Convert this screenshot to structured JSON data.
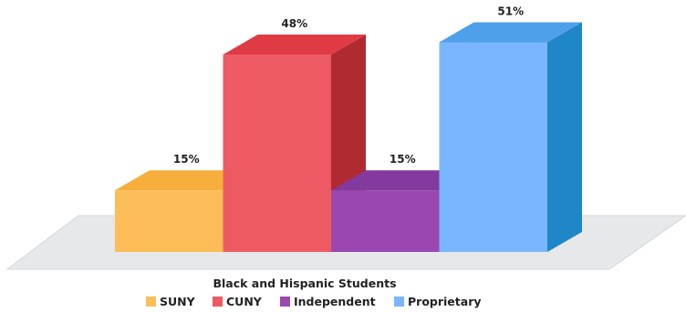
{
  "chart_data": {
    "type": "bar",
    "xlabel": "Black and Hispanic Students",
    "ylabel": "",
    "title": "",
    "categories": [
      "SUNY",
      "CUNY",
      "Independent",
      "Proprietary"
    ],
    "values": [
      15,
      48,
      15,
      51
    ],
    "value_labels": [
      "15%",
      "48%",
      "15%",
      "51%"
    ],
    "unit": "%",
    "ylim": [
      0,
      60
    ],
    "grid": false,
    "legend": "bottom",
    "colors": [
      {
        "front": "#FDBE5A",
        "side": "#E8A12C",
        "top": "#F7AE3C"
      },
      {
        "front": "#EE5A64",
        "side": "#B02A31",
        "top": "#E03A44"
      },
      {
        "front": "#9A48B0",
        "side": "#6B2386",
        "top": "#833A9E"
      },
      {
        "front": "#79B6FF",
        "side": "#1F86C8",
        "top": "#4FA0EB"
      }
    ],
    "floor_color": "#E6E8EA"
  }
}
